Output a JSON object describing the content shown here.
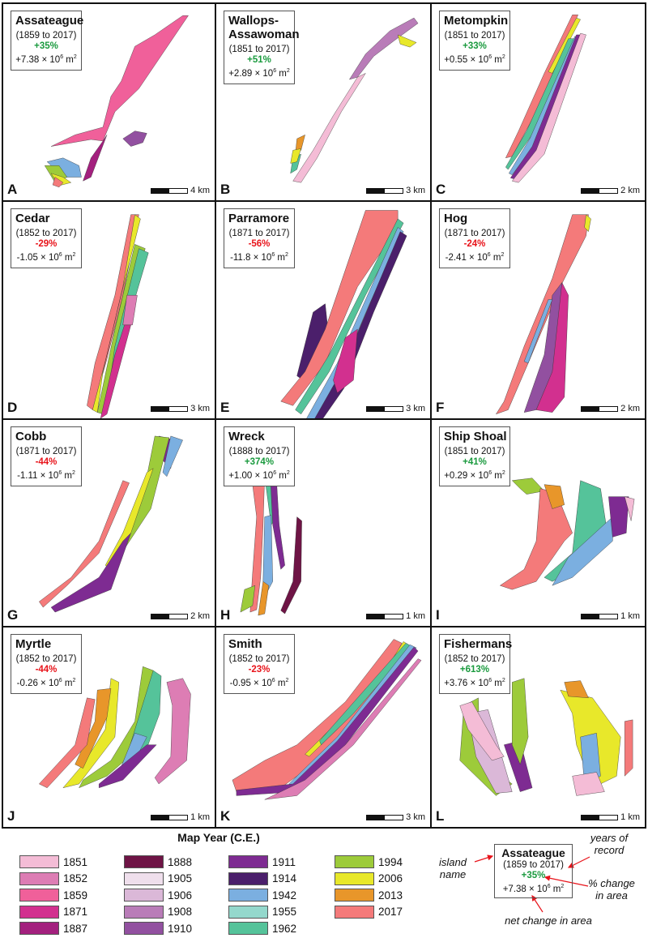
{
  "panels": [
    {
      "letter": "A",
      "name": "Assateague",
      "years": "(1859 to 2017)",
      "pct": "+35%",
      "pct_sign": "pos",
      "net": "+7.38 × 10",
      "net_exp": "6",
      "net_unit": " m",
      "unit_exp": "2",
      "scale": "4 km"
    },
    {
      "letter": "B",
      "name": "Wallops-Assawoman",
      "years": "(1851 to 2017)",
      "pct": "+51%",
      "pct_sign": "pos",
      "net": "+2.89 × 10",
      "net_exp": "6",
      "net_unit": " m",
      "unit_exp": "2",
      "scale": "3 km"
    },
    {
      "letter": "C",
      "name": "Metompkin",
      "years": "(1851 to 2017)",
      "pct": "+33%",
      "pct_sign": "pos",
      "net": "+0.55 × 10",
      "net_exp": "6",
      "net_unit": " m",
      "unit_exp": "2",
      "scale": "2 km"
    },
    {
      "letter": "D",
      "name": "Cedar",
      "years": "(1852 to 2017)",
      "pct": "-29%",
      "pct_sign": "neg",
      "net": "-1.05 × 10",
      "net_exp": "6",
      "net_unit": " m",
      "unit_exp": "2",
      "scale": "3 km"
    },
    {
      "letter": "E",
      "name": "Parramore",
      "years": "(1871 to 2017)",
      "pct": "-56%",
      "pct_sign": "neg",
      "net": "-11.8 × 10",
      "net_exp": "6",
      "net_unit": " m",
      "unit_exp": "2",
      "scale": "3 km"
    },
    {
      "letter": "F",
      "name": "Hog",
      "years": "(1871 to 2017)",
      "pct": "-24%",
      "pct_sign": "neg",
      "net": "-2.41 × 10",
      "net_exp": "6",
      "net_unit": " m",
      "unit_exp": "2",
      "scale": "2 km"
    },
    {
      "letter": "G",
      "name": "Cobb",
      "years": "(1871 to 2017)",
      "pct": "-44%",
      "pct_sign": "neg",
      "net": "-1.11 × 10",
      "net_exp": "6",
      "net_unit": " m",
      "unit_exp": "2",
      "scale": "2 km"
    },
    {
      "letter": "H",
      "name": "Wreck",
      "years": "(1888 to 2017)",
      "pct": "+374%",
      "pct_sign": "pos",
      "net": "+1.00 × 10",
      "net_exp": "6",
      "net_unit": " m",
      "unit_exp": "2",
      "scale": "1 km"
    },
    {
      "letter": "I",
      "name": "Ship Shoal",
      "years": "(1851 to 2017)",
      "pct": "+41%",
      "pct_sign": "pos",
      "net": "+0.29 × 10",
      "net_exp": "6",
      "net_unit": " m",
      "unit_exp": "2",
      "scale": "1 km"
    },
    {
      "letter": "J",
      "name": "Myrtle",
      "years": "(1852 to 2017)",
      "pct": "-44%",
      "pct_sign": "neg",
      "net": "-0.26 × 10",
      "net_exp": "6",
      "net_unit": " m",
      "unit_exp": "2",
      "scale": "1 km"
    },
    {
      "letter": "K",
      "name": "Smith",
      "years": "(1852 to 2017)",
      "pct": "-23%",
      "pct_sign": "neg",
      "net": "-0.95 × 10",
      "net_exp": "6",
      "net_unit": " m",
      "unit_exp": "2",
      "scale": "3 km"
    },
    {
      "letter": "L",
      "name": "Fishermans",
      "years": "(1852 to 2017)",
      "pct": "+613%",
      "pct_sign": "pos",
      "net": "+3.76 × 10",
      "net_exp": "6",
      "net_unit": " m",
      "unit_exp": "2",
      "scale": "1 km"
    }
  ],
  "legend": {
    "title": "Map Year (C.E.)",
    "items": [
      {
        "year": "1851",
        "color": "#f4bcd6"
      },
      {
        "year": "1852",
        "color": "#dd7db4"
      },
      {
        "year": "1859",
        "color": "#f0609a"
      },
      {
        "year": "1871",
        "color": "#d2308f"
      },
      {
        "year": "1887",
        "color": "#a3207e"
      },
      {
        "year": "1888",
        "color": "#6e1445"
      },
      {
        "year": "1905",
        "color": "#efdfec"
      },
      {
        "year": "1906",
        "color": "#dbb8d8"
      },
      {
        "year": "1908",
        "color": "#b97cb8"
      },
      {
        "year": "1910",
        "color": "#9250a0"
      },
      {
        "year": "1911",
        "color": "#7e2b92"
      },
      {
        "year": "1914",
        "color": "#4b1f6b"
      },
      {
        "year": "1942",
        "color": "#7bafe0"
      },
      {
        "year": "1955",
        "color": "#94d8cc"
      },
      {
        "year": "1962",
        "color": "#55c39a"
      },
      {
        "year": "1994",
        "color": "#9dcb3a"
      },
      {
        "year": "2006",
        "color": "#e8e82a"
      },
      {
        "year": "2013",
        "color": "#e8962a"
      },
      {
        "year": "2017",
        "color": "#f47a7a"
      }
    ]
  },
  "key": {
    "name": "Assateague",
    "years": "(1859 to 2017)",
    "pct": "+35%",
    "net": "+7.38 × 10",
    "net_exp": "6",
    "net_unit": " m",
    "unit_exp": "2",
    "anno_island_name": "island name",
    "anno_years": "years of record",
    "anno_pct": "% change in area",
    "anno_net": "net change in area"
  },
  "colors": {
    "positive": "#1a9a3e",
    "negative": "#e8141b",
    "arrow": "#e8141b"
  }
}
